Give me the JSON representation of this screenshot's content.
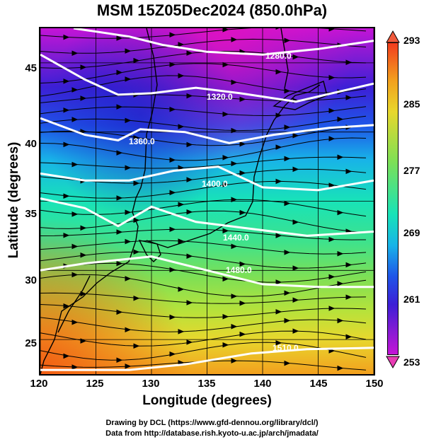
{
  "title": "MSM 15Z05Dec2024 (850.0hPa)",
  "xlabel": "Longitude (degrees)",
  "ylabel": "Latitude  (degrees)",
  "x_ticks": [
    "120",
    "125",
    "130",
    "135",
    "140",
    "145",
    "150"
  ],
  "y_ticks": [
    "25",
    "30",
    "35",
    "40",
    "45"
  ],
  "colorbar": {
    "ticks": [
      "293",
      "285",
      "277",
      "269",
      "261",
      "253"
    ],
    "min": 253,
    "max": 293
  },
  "contour_labels": [
    "1280.0",
    "1320.0",
    "1360.0",
    "1400.0",
    "1440.0",
    "1480.0",
    "1510.0"
  ],
  "credits": {
    "line1": "Drawing by DCL (https://www.gfd-dennou.org/library/dcl/)",
    "line2": "Data from http://database.rish.kyoto-u.ac.jp/arch/jmadata/"
  },
  "chart_data": {
    "type": "heatmap",
    "title": "MSM 15Z05Dec2024 (850.0hPa)",
    "xlabel": "Longitude (degrees)",
    "ylabel": "Latitude  (degrees)",
    "xlim": [
      120,
      150
    ],
    "ylim": [
      22.5,
      47.5
    ],
    "grid": true,
    "colorbar_range": [
      253,
      293
    ],
    "contours": [
      {
        "level": 1280.0,
        "points": [
          [
            123,
            47.5
          ],
          [
            128,
            46.9
          ],
          [
            131,
            46.3
          ],
          [
            135,
            45.8
          ],
          [
            140,
            45.6
          ],
          [
            145,
            46.0
          ],
          [
            150,
            46.6
          ]
        ]
      },
      {
        "level": 1320.0,
        "points": [
          [
            120,
            45.6
          ],
          [
            124,
            43.8
          ],
          [
            127,
            42.7
          ],
          [
            130,
            42.8
          ],
          [
            134,
            43.2
          ],
          [
            138,
            42.8
          ],
          [
            143,
            42.2
          ],
          [
            150,
            43.5
          ]
        ]
      },
      {
        "level": 1360.0,
        "points": [
          [
            120,
            41.0
          ],
          [
            124,
            39.8
          ],
          [
            127,
            39.4
          ],
          [
            129,
            40.2
          ],
          [
            133,
            40.0
          ],
          [
            137,
            39.2
          ],
          [
            141,
            39.8
          ],
          [
            146,
            40.3
          ],
          [
            150,
            40.5
          ]
        ]
      },
      {
        "level": 1400.0,
        "points": [
          [
            120,
            37.0
          ],
          [
            124,
            36.5
          ],
          [
            128,
            36.5
          ],
          [
            132,
            37.2
          ],
          [
            136,
            37.5
          ],
          [
            140,
            36.0
          ],
          [
            145,
            35.8
          ],
          [
            150,
            36.5
          ]
        ]
      },
      {
        "level": 1440.0,
        "points": [
          [
            120,
            35.2
          ],
          [
            124,
            34.5
          ],
          [
            127,
            33.2
          ],
          [
            130,
            34.6
          ],
          [
            134,
            33.5
          ],
          [
            139,
            33.0
          ],
          [
            144,
            32.5
          ],
          [
            150,
            32.8
          ]
        ]
      },
      {
        "level": 1480.0,
        "points": [
          [
            120,
            30.0
          ],
          [
            124,
            30.5
          ],
          [
            130,
            31.0
          ],
          [
            135,
            30.0
          ],
          [
            140,
            29.0
          ],
          [
            145,
            28.8
          ],
          [
            150,
            28.8
          ]
        ]
      },
      {
        "level": 1510.0,
        "points": [
          [
            120,
            22.8
          ],
          [
            128,
            22.8
          ],
          [
            133,
            23.2
          ],
          [
            139,
            24.0
          ],
          [
            144,
            24.3
          ],
          [
            150,
            24.4
          ]
        ]
      }
    ]
  }
}
